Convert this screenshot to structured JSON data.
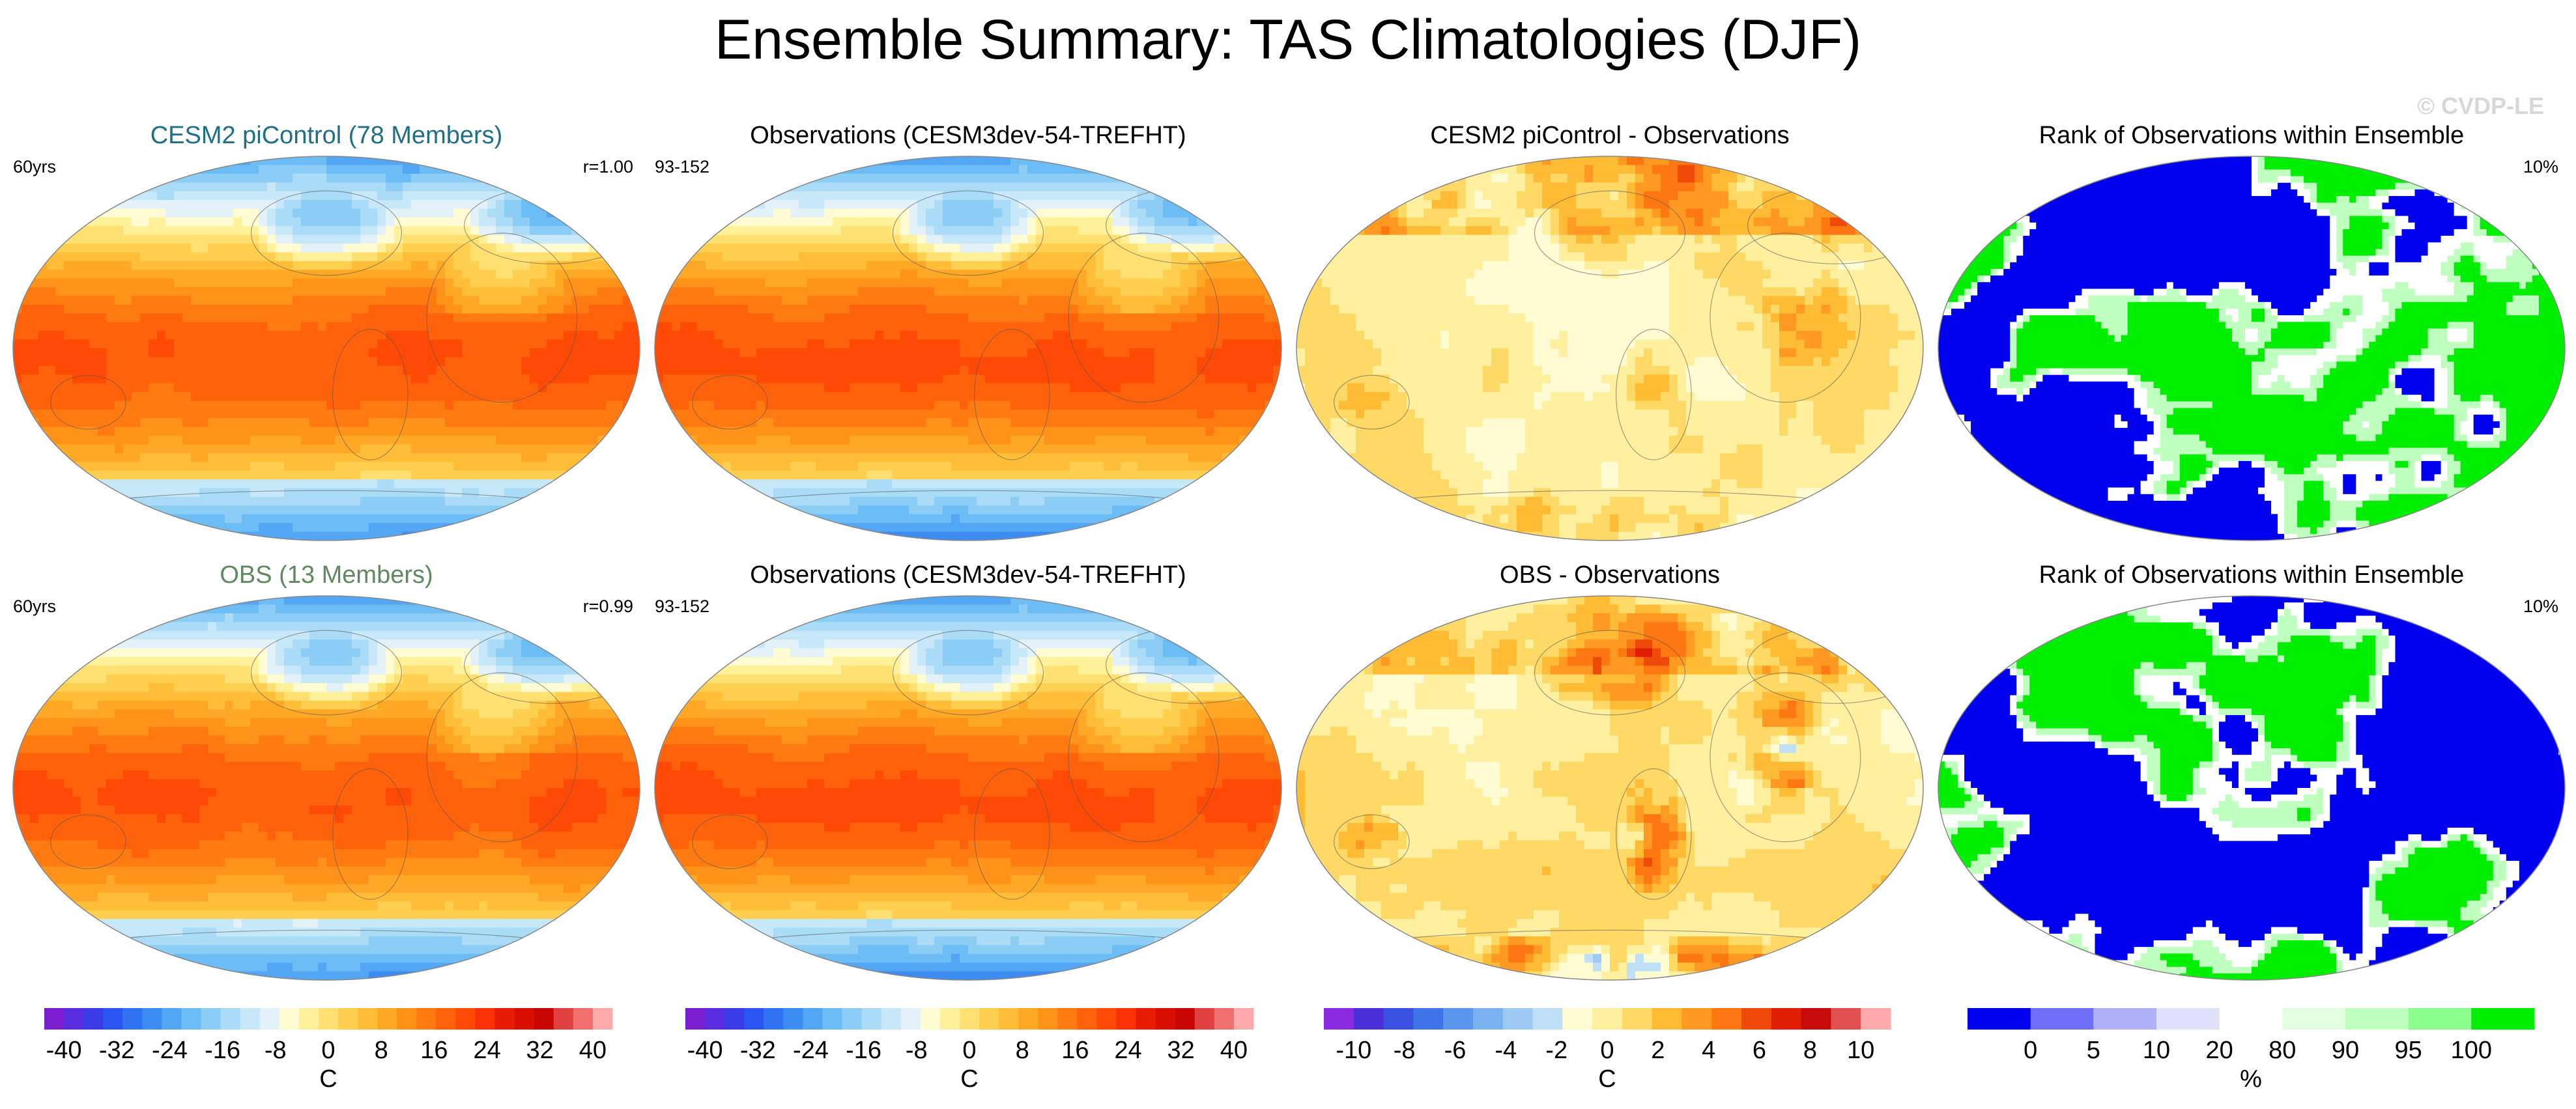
{
  "title": "Ensemble Summary: TAS Climatologies (DJF)",
  "watermark": "© CVDP-LE",
  "chart_data": {
    "type": "heatmap",
    "projection": "robinson",
    "panels": [
      {
        "id": "ens1",
        "title": "CESM2 piControl (78 Members)",
        "title_color": "#1f6f86",
        "left_label": "60yrs",
        "right_label": "r=1.00",
        "field": "clim",
        "variant": 0
      },
      {
        "id": "obs1",
        "title": "Observations (CESM3dev-54-TREFHT)",
        "title_color": "#000000",
        "left_label": "93-152",
        "right_label": "",
        "field": "clim",
        "variant": 1
      },
      {
        "id": "diff1",
        "title": "CESM2 piControl - Observations",
        "title_color": "#000000",
        "left_label": "",
        "right_label": "",
        "field": "diff",
        "variant": 0
      },
      {
        "id": "rank1",
        "title": "Rank of Observations within Ensemble",
        "title_color": "#000000",
        "left_label": "",
        "right_label": "10%",
        "field": "rank",
        "variant": 0
      },
      {
        "id": "ens2",
        "title": "OBS (13 Members)",
        "title_color": "#5f8a5f",
        "left_label": "60yrs",
        "right_label": "r=0.99",
        "field": "clim",
        "variant": 2
      },
      {
        "id": "obs2",
        "title": "Observations (CESM3dev-54-TREFHT)",
        "title_color": "#000000",
        "left_label": "93-152",
        "right_label": "",
        "field": "clim",
        "variant": 1
      },
      {
        "id": "diff2",
        "title": "OBS - Observations",
        "title_color": "#000000",
        "left_label": "",
        "right_label": "",
        "field": "diff",
        "variant": 1
      },
      {
        "id": "rank2",
        "title": "Rank of Observations within Ensemble",
        "title_color": "#000000",
        "left_label": "",
        "right_label": "10%",
        "field": "rank",
        "variant": 1
      }
    ],
    "colorbars": [
      {
        "id": "cb_clim1",
        "unit": "C",
        "colors": [
          "#7a1fd0",
          "#5a2ee0",
          "#3a3ce8",
          "#2a55f0",
          "#2f72f2",
          "#3d8cf2",
          "#52a6f3",
          "#6cbcf5",
          "#8ccdf6",
          "#aadcf7",
          "#c7e8f8",
          "#e2f2f8",
          "#fffbd2",
          "#fff09a",
          "#ffe070",
          "#ffcf50",
          "#ffbd38",
          "#ffa826",
          "#ff9218",
          "#ff7a10",
          "#ff620a",
          "#ff4a06",
          "#f83204",
          "#e81c02",
          "#d80e02",
          "#c80602",
          "#e04040",
          "#f07070",
          "#ffaaaa"
        ],
        "tick_labels": [
          "-40",
          "-32",
          "-24",
          "-16",
          "-8",
          "0",
          "8",
          "16",
          "24",
          "32",
          "40"
        ]
      },
      {
        "id": "cb_clim2",
        "unit": "C",
        "colors": [
          "#7a1fd0",
          "#5a2ee0",
          "#3a3ce8",
          "#2a55f0",
          "#2f72f2",
          "#3d8cf2",
          "#52a6f3",
          "#6cbcf5",
          "#8ccdf6",
          "#aadcf7",
          "#c7e8f8",
          "#e2f2f8",
          "#fffbd2",
          "#fff09a",
          "#ffe070",
          "#ffcf50",
          "#ffbd38",
          "#ffa826",
          "#ff9218",
          "#ff7a10",
          "#ff620a",
          "#ff4a06",
          "#f83204",
          "#e81c02",
          "#d80e02",
          "#c80602",
          "#e04040",
          "#f07070",
          "#ffaaaa"
        ],
        "tick_labels": [
          "-40",
          "-32",
          "-24",
          "-16",
          "-8",
          "0",
          "8",
          "16",
          "24",
          "32",
          "40"
        ]
      },
      {
        "id": "cb_diff",
        "unit": "C",
        "colors": [
          "#8a2be2",
          "#4b2fd9",
          "#3a50e0",
          "#3f74e8",
          "#5a96ee",
          "#7ab2f0",
          "#9ccaf4",
          "#bfe0f7",
          "#fffbd2",
          "#fff0a0",
          "#ffd966",
          "#ffbb33",
          "#ff9922",
          "#ff7711",
          "#f04a0a",
          "#e01d05",
          "#c80a0a",
          "#e05050",
          "#ffaaaa"
        ],
        "tick_labels": [
          "-10",
          "-8",
          "-6",
          "-4",
          "-2",
          "0",
          "2",
          "4",
          "6",
          "8",
          "10"
        ]
      },
      {
        "id": "cb_rank",
        "unit": "%",
        "colors": [
          "#0000ee",
          "#6f6ff5",
          "#b0b0f8",
          "#e0e0fb",
          "#ffffff",
          "#e2ffe2",
          "#bfffbf",
          "#8cff8c",
          "#00ee00"
        ],
        "tick_labels": [
          "0",
          "5",
          "10",
          "20",
          "80",
          "90",
          "95",
          "100"
        ]
      }
    ]
  }
}
